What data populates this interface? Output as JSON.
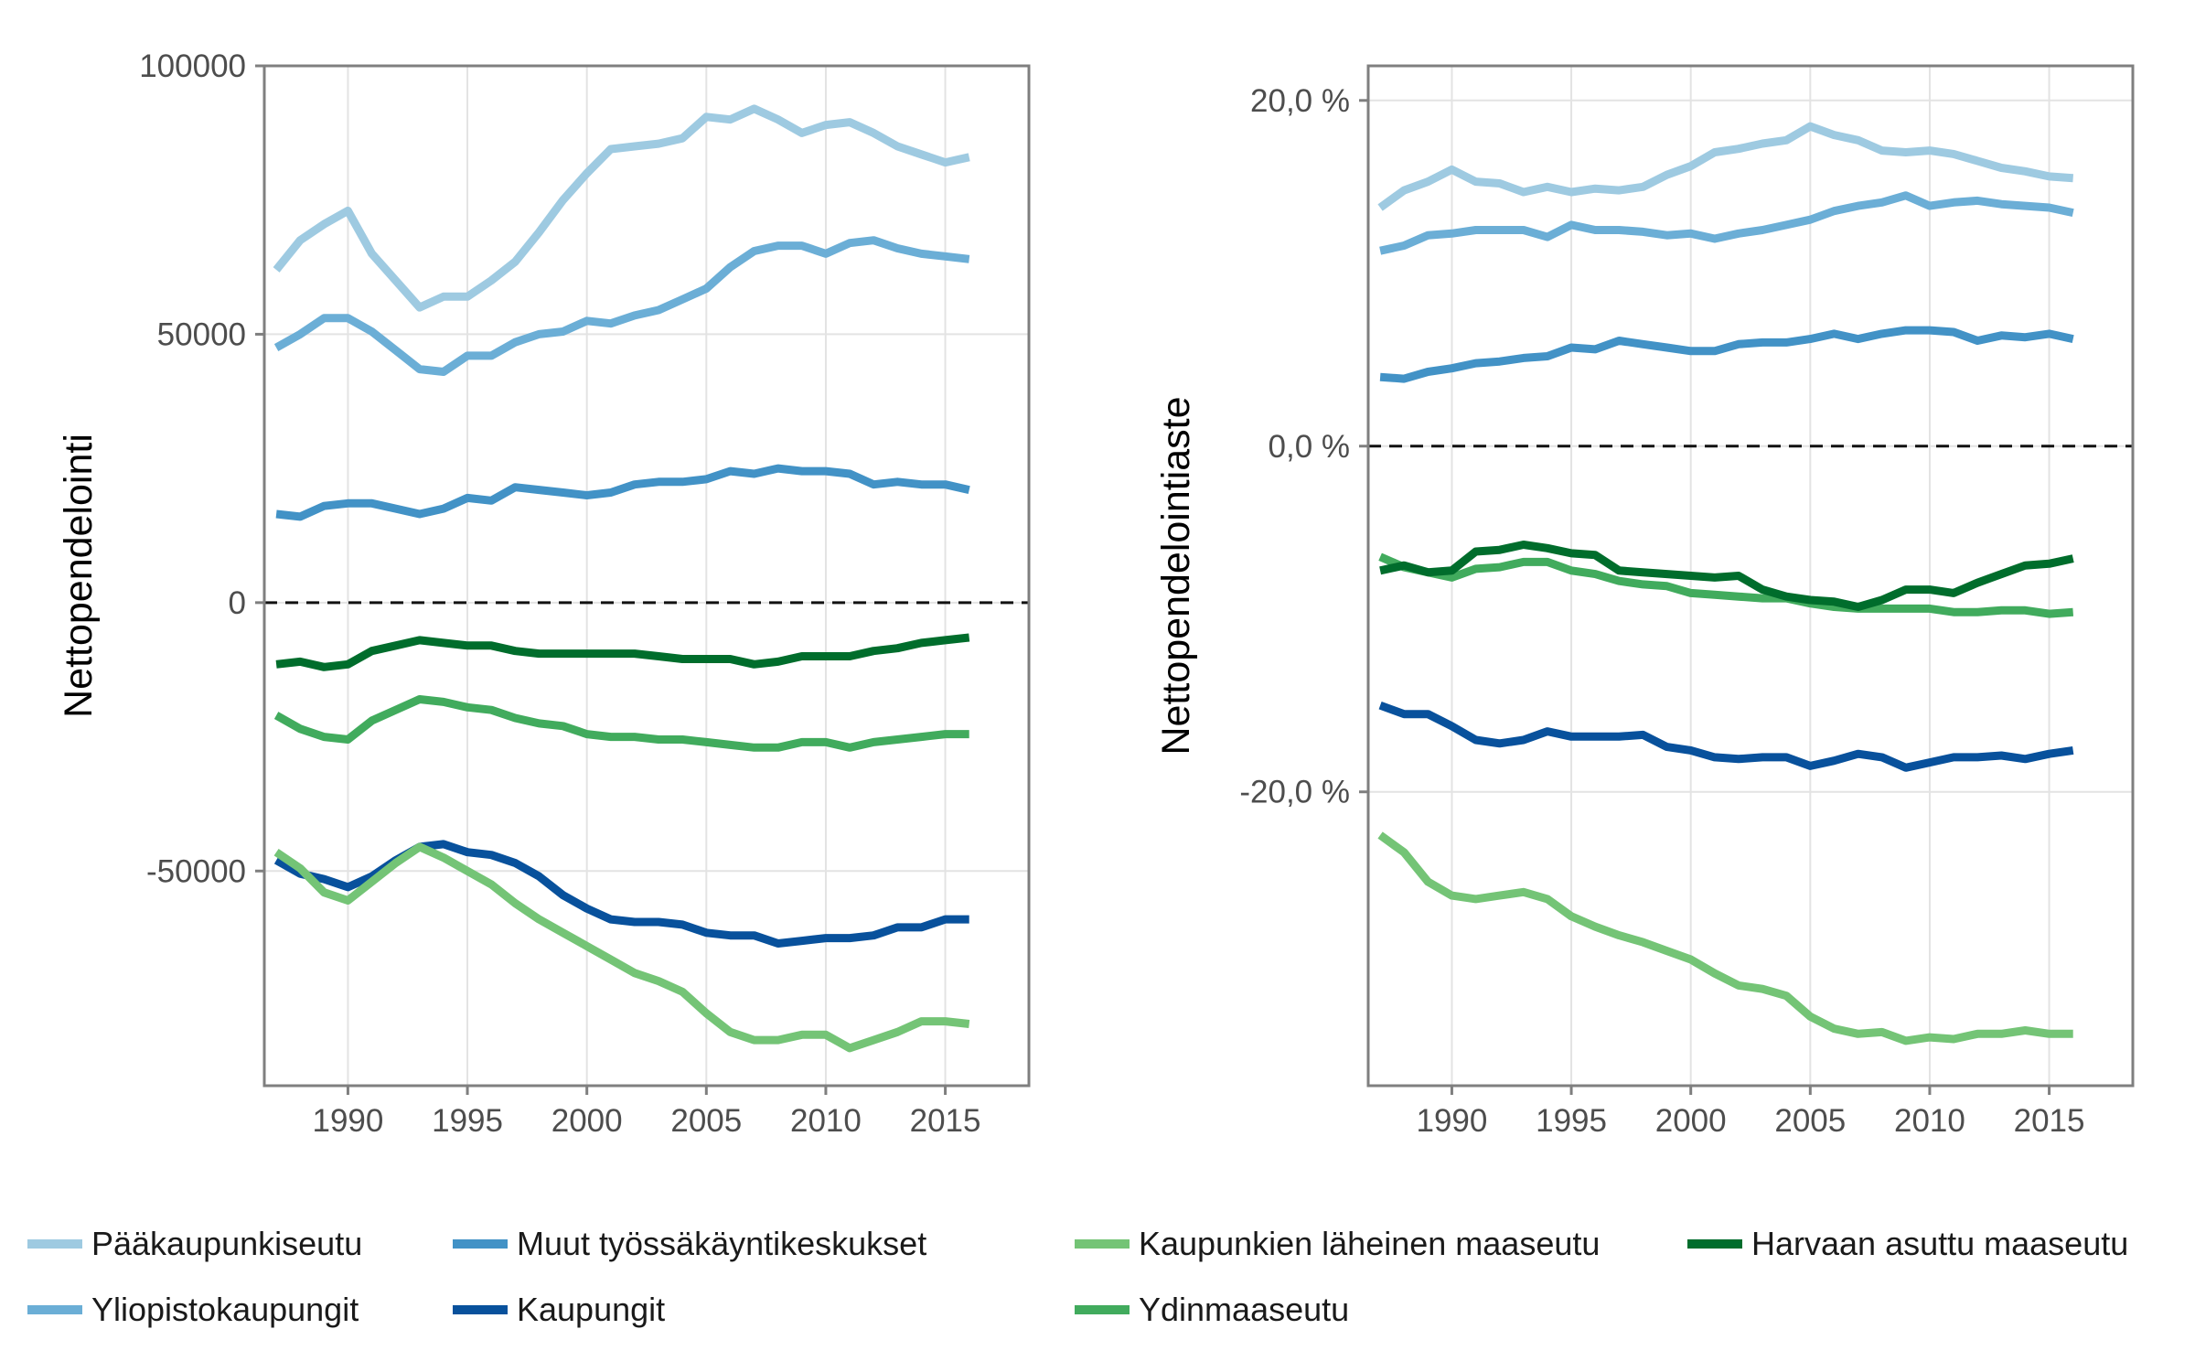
{
  "chart_data": [
    {
      "type": "line",
      "ylabel": "Nettopendelointi",
      "xlabel": "",
      "xlim": [
        1986.5,
        2018.5
      ],
      "ylim": [
        -90000,
        100000
      ],
      "xticks": [
        1990,
        1995,
        2000,
        2005,
        2010,
        2015
      ],
      "xtick_labels": [
        "1990",
        "1995",
        "2000",
        "2005",
        "2010",
        "2015"
      ],
      "yticks": [
        -50000,
        0,
        50000,
        100000
      ],
      "ytick_labels": [
        "-50000",
        "0",
        "50000",
        "100000"
      ],
      "reference_line": 0,
      "grid": true,
      "x": [
        1987,
        1988,
        1989,
        1990,
        1991,
        1992,
        1993,
        1994,
        1995,
        1996,
        1997,
        1998,
        1999,
        2000,
        2001,
        2002,
        2003,
        2004,
        2005,
        2006,
        2007,
        2008,
        2009,
        2010,
        2011,
        2012,
        2013,
        2014,
        2015,
        2016
      ],
      "series": [
        {
          "name": "Pääkaupunkiseutu",
          "color": "#9ecae1",
          "values": [
            62000,
            67500,
            70500,
            73000,
            65000,
            60000,
            55000,
            57000,
            57000,
            60000,
            63500,
            69000,
            75000,
            80000,
            84500,
            85000,
            85500,
            86500,
            90500,
            90000,
            92000,
            90000,
            87500,
            89000,
            89500,
            87500,
            85000,
            83500,
            82000,
            83000
          ]
        },
        {
          "name": "Yliopistokaupungit",
          "color": "#6baed6",
          "values": [
            47500,
            50000,
            53000,
            53000,
            50500,
            47000,
            43500,
            43000,
            46000,
            46000,
            48500,
            50000,
            50500,
            52500,
            52000,
            53500,
            54500,
            56500,
            58500,
            62500,
            65500,
            66500,
            66500,
            65000,
            67000,
            67500,
            66000,
            65000,
            64500,
            64000
          ]
        },
        {
          "name": "Muut työssäkäyntikeskukset",
          "color": "#4292c6",
          "values": [
            16500,
            16000,
            18000,
            18500,
            18500,
            17500,
            16500,
            17500,
            19500,
            19000,
            21500,
            21000,
            20500,
            20000,
            20500,
            22000,
            22500,
            22500,
            23000,
            24500,
            24000,
            25000,
            24500,
            24500,
            24000,
            22000,
            22500,
            22000,
            22000,
            21000
          ]
        },
        {
          "name": "Kaupungit",
          "color": "#08519c",
          "values": [
            -48000,
            -50500,
            -51500,
            -53000,
            -51000,
            -48000,
            -45500,
            -45000,
            -46500,
            -47000,
            -48500,
            -51000,
            -54500,
            -57000,
            -59000,
            -59500,
            -59500,
            -60000,
            -61500,
            -62000,
            -62000,
            -63500,
            -63000,
            -62500,
            -62500,
            -62000,
            -60500,
            -60500,
            -59000,
            -59000
          ]
        },
        {
          "name": "Kaupunkien läheinen maaseutu",
          "color": "#74c476",
          "values": [
            -46500,
            -49500,
            -54000,
            -55500,
            -52000,
            -48500,
            -45500,
            -47500,
            -50000,
            -52500,
            -56000,
            -59000,
            -61500,
            -64000,
            -66500,
            -69000,
            -70500,
            -72500,
            -76500,
            -80000,
            -81500,
            -81500,
            -80500,
            -80500,
            -83000,
            -81500,
            -80000,
            -78000,
            -78000,
            -78500
          ]
        },
        {
          "name": "Ydinmaaseutu",
          "color": "#41ab5d",
          "values": [
            -21000,
            -23500,
            -25000,
            -25500,
            -22000,
            -20000,
            -18000,
            -18500,
            -19500,
            -20000,
            -21500,
            -22500,
            -23000,
            -24500,
            -25000,
            -25000,
            -25500,
            -25500,
            -26000,
            -26500,
            -27000,
            -27000,
            -26000,
            -26000,
            -27000,
            -26000,
            -25500,
            -25000,
            -24500,
            -24500
          ]
        },
        {
          "name": "Harvaan asuttu maaseutu",
          "color": "#006d2c",
          "values": [
            -11500,
            -11000,
            -12000,
            -11500,
            -9000,
            -8000,
            -7000,
            -7500,
            -8000,
            -8000,
            -9000,
            -9500,
            -9500,
            -9500,
            -9500,
            -9500,
            -10000,
            -10500,
            -10500,
            -10500,
            -11500,
            -11000,
            -10000,
            -10000,
            -10000,
            -9000,
            -8500,
            -7500,
            -7000,
            -6500
          ]
        }
      ]
    },
    {
      "type": "line",
      "ylabel": "Nettopendelointiaste",
      "xlabel": "",
      "xlim": [
        1986.5,
        2018.5
      ],
      "ylim": [
        -37,
        22
      ],
      "xticks": [
        1990,
        1995,
        2000,
        2005,
        2010,
        2015
      ],
      "xtick_labels": [
        "1990",
        "1995",
        "2000",
        "2005",
        "2010",
        "2015"
      ],
      "yticks": [
        -20,
        0,
        20
      ],
      "ytick_labels": [
        "-20,0 %",
        "0,0 %",
        "20,0 %"
      ],
      "reference_line": 0,
      "grid": true,
      "x": [
        1987,
        1988,
        1989,
        1990,
        1991,
        1992,
        1993,
        1994,
        1995,
        1996,
        1997,
        1998,
        1999,
        2000,
        2001,
        2002,
        2003,
        2004,
        2005,
        2006,
        2007,
        2008,
        2009,
        2010,
        2011,
        2012,
        2013,
        2014,
        2015,
        2016
      ],
      "series": [
        {
          "name": "Pääkaupunkiseutu",
          "color": "#9ecae1",
          "values": [
            13.8,
            14.8,
            15.3,
            16.0,
            15.3,
            15.2,
            14.7,
            15.0,
            14.7,
            14.9,
            14.8,
            15.0,
            15.7,
            16.2,
            17.0,
            17.2,
            17.5,
            17.7,
            18.5,
            18.0,
            17.7,
            17.1,
            17.0,
            17.1,
            16.9,
            16.5,
            16.1,
            15.9,
            15.6,
            15.5
          ]
        },
        {
          "name": "Yliopistokaupungit",
          "color": "#6baed6",
          "values": [
            11.3,
            11.6,
            12.2,
            12.3,
            12.5,
            12.5,
            12.5,
            12.1,
            12.8,
            12.5,
            12.5,
            12.4,
            12.2,
            12.3,
            12.0,
            12.3,
            12.5,
            12.8,
            13.1,
            13.6,
            13.9,
            14.1,
            14.5,
            13.9,
            14.1,
            14.2,
            14.0,
            13.9,
            13.8,
            13.5
          ]
        },
        {
          "name": "Muut työssäkäyntikeskukset",
          "color": "#4292c6",
          "values": [
            4.0,
            3.9,
            4.3,
            4.5,
            4.8,
            4.9,
            5.1,
            5.2,
            5.7,
            5.6,
            6.1,
            5.9,
            5.7,
            5.5,
            5.5,
            5.9,
            6.0,
            6.0,
            6.2,
            6.5,
            6.2,
            6.5,
            6.7,
            6.7,
            6.6,
            6.1,
            6.4,
            6.3,
            6.5,
            6.2
          ]
        },
        {
          "name": "Kaupungit",
          "color": "#08519c",
          "values": [
            -15.0,
            -15.5,
            -15.5,
            -16.2,
            -17.0,
            -17.2,
            -17.0,
            -16.5,
            -16.8,
            -16.8,
            -16.8,
            -16.7,
            -17.4,
            -17.6,
            -18.0,
            -18.1,
            -18.0,
            -18.0,
            -18.5,
            -18.2,
            -17.8,
            -18.0,
            -18.6,
            -18.3,
            -18.0,
            -18.0,
            -17.9,
            -18.1,
            -17.8,
            -17.6
          ]
        },
        {
          "name": "Kaupunkien läheinen maaseutu",
          "color": "#74c476",
          "values": [
            -22.5,
            -23.5,
            -25.2,
            -26.0,
            -26.2,
            -26.0,
            -25.8,
            -26.2,
            -27.2,
            -27.8,
            -28.3,
            -28.7,
            -29.2,
            -29.7,
            -30.5,
            -31.2,
            -31.4,
            -31.8,
            -33.0,
            -33.7,
            -34.0,
            -33.9,
            -34.4,
            -34.2,
            -34.3,
            -34.0,
            -34.0,
            -33.8,
            -34.0,
            -34.0
          ]
        },
        {
          "name": "Ydinmaaseutu",
          "color": "#41ab5d",
          "values": [
            -6.4,
            -7.0,
            -7.3,
            -7.6,
            -7.1,
            -7.0,
            -6.7,
            -6.7,
            -7.2,
            -7.4,
            -7.8,
            -8.0,
            -8.1,
            -8.5,
            -8.6,
            -8.7,
            -8.8,
            -8.8,
            -9.1,
            -9.3,
            -9.4,
            -9.4,
            -9.4,
            -9.4,
            -9.6,
            -9.6,
            -9.5,
            -9.5,
            -9.7,
            -9.6
          ]
        },
        {
          "name": "Harvaan asuttu maaseutu",
          "color": "#006d2c",
          "values": [
            -7.2,
            -6.9,
            -7.3,
            -7.2,
            -6.1,
            -6.0,
            -5.7,
            -5.9,
            -6.2,
            -6.3,
            -7.2,
            -7.3,
            -7.4,
            -7.5,
            -7.6,
            -7.5,
            -8.3,
            -8.7,
            -8.9,
            -9.0,
            -9.3,
            -8.9,
            -8.3,
            -8.3,
            -8.5,
            -7.9,
            -7.4,
            -6.9,
            -6.8,
            -6.5
          ]
        }
      ]
    }
  ],
  "legend": {
    "position": "bottom",
    "items": [
      {
        "label": "Pääkaupunkiseutu",
        "color": "#9ecae1"
      },
      {
        "label": "Yliopistokaupungit",
        "color": "#6baed6"
      },
      {
        "label": "Muut työssäkäyntikeskukset",
        "color": "#4292c6"
      },
      {
        "label": "Kaupungit",
        "color": "#08519c"
      },
      {
        "label": "Kaupunkien läheinen maaseutu",
        "color": "#74c476"
      },
      {
        "label": "Ydinmaaseutu",
        "color": "#41ab5d"
      },
      {
        "label": "Harvaan asuttu maaseutu",
        "color": "#006d2c"
      }
    ]
  }
}
